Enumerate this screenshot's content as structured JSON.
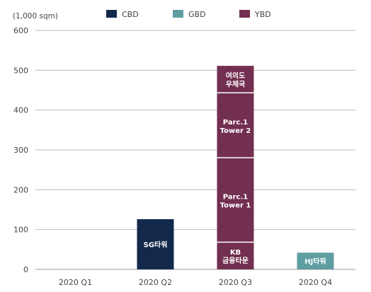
{
  "chart_data": {
    "type": "bar",
    "stacked": true,
    "title": "",
    "unit_label": "(1,000 sqm)",
    "xlabel": "",
    "ylabel": "",
    "ylim": [
      0,
      600
    ],
    "yticks": [
      0,
      100,
      200,
      300,
      400,
      500,
      600
    ],
    "grid": true,
    "legend_position": "top",
    "categories": [
      "2020 Q1",
      "2020 Q2",
      "2020 Q3",
      "2020 Q4"
    ],
    "series": [
      {
        "name": "CBD",
        "color": "#13294b"
      },
      {
        "name": "GBD",
        "color": "#5f9ea0"
      },
      {
        "name": "YBD",
        "color": "#722f4f"
      }
    ],
    "bars": [
      {
        "category": "2020 Q2",
        "series": "CBD",
        "label": "SG타워",
        "value": 126
      },
      {
        "category": "2020 Q3",
        "series": "YBD",
        "label": "KB\n금융타운",
        "value": 67
      },
      {
        "category": "2020 Q3",
        "series": "YBD",
        "label": "Parc.1\nTower 1",
        "value": 212
      },
      {
        "category": "2020 Q3",
        "series": "YBD",
        "label": "Parc.1\nTower 2",
        "value": 163
      },
      {
        "category": "2020 Q3",
        "series": "YBD",
        "label": "여의도\n우체국",
        "value": 69
      },
      {
        "category": "2020 Q4",
        "series": "GBD",
        "label": "HJ타워",
        "value": 42
      }
    ]
  }
}
